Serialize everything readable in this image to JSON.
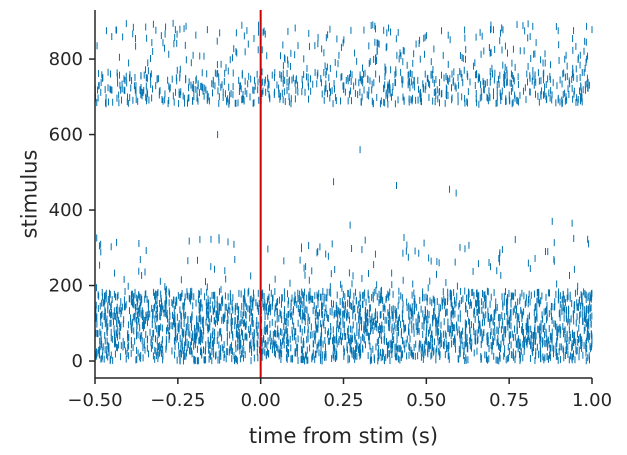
{
  "chart_data": {
    "type": "raster",
    "xlabel": "time from stim (s)",
    "ylabel": "stimulus",
    "xlim": [
      -0.5,
      1.0
    ],
    "ylim": [
      -45,
      930
    ],
    "xticks": [
      -0.5,
      -0.25,
      0.0,
      0.25,
      0.5,
      0.75,
      1.0
    ],
    "xtick_labels": [
      "−0.50",
      "−0.25",
      "0.00",
      "0.25",
      "0.50",
      "0.75",
      "1.00"
    ],
    "yticks": [
      0,
      200,
      400,
      600,
      800
    ],
    "ytick_labels": [
      "0",
      "200",
      "400",
      "600",
      "800"
    ],
    "stim_marker_x": 0.0,
    "stim_marker_color": "#cc0000",
    "spike_color": "#0072b2",
    "spike_bands": [
      {
        "name": "dense-low",
        "y_min": 0,
        "y_max": 185,
        "t_min": -0.5,
        "t_max": 1.0,
        "count": 2600
      },
      {
        "name": "sparse-low",
        "y_min": 185,
        "y_max": 330,
        "t_min": -0.5,
        "t_max": 1.0,
        "count": 130
      },
      {
        "name": "band-high",
        "y_min": 680,
        "y_max": 765,
        "t_min": -0.5,
        "t_max": 1.0,
        "count": 700
      },
      {
        "name": "sparse-high",
        "y_min": 765,
        "y_max": 895,
        "t_min": -0.5,
        "t_max": 1.0,
        "count": 260
      }
    ],
    "isolated_spikes": [
      {
        "t": -0.13,
        "y": 600
      },
      {
        "t": 0.22,
        "y": 475
      },
      {
        "t": 0.3,
        "y": 560
      },
      {
        "t": 0.41,
        "y": 465
      },
      {
        "t": 0.57,
        "y": 455
      },
      {
        "t": 0.59,
        "y": 445
      },
      {
        "t": 0.27,
        "y": 360
      },
      {
        "t": 0.88,
        "y": 370
      },
      {
        "t": 0.94,
        "y": 365
      }
    ]
  }
}
